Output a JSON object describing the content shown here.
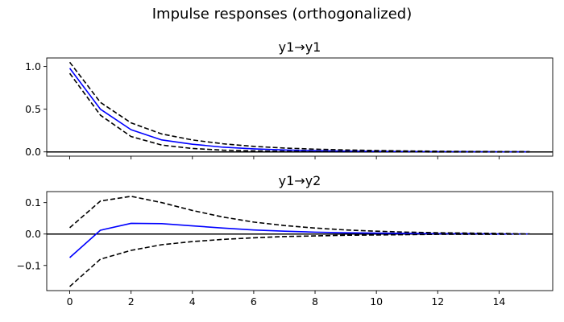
{
  "suptitle": "Impulse responses (orthogonalized)",
  "colors": {
    "response": "#0000ff",
    "bands": "#000000",
    "zero": "#000000",
    "axes": "#000000"
  },
  "chart_data": [
    {
      "type": "line",
      "title": "y1→y1",
      "xlim": [
        -0.75,
        15.75
      ],
      "ylim": [
        -0.05,
        1.1
      ],
      "xticks": [
        0,
        2,
        4,
        6,
        8,
        10,
        12,
        14
      ],
      "show_xtick_labels": false,
      "yticks": [
        0.0,
        0.5,
        1.0
      ],
      "ytick_labels": [
        "0.0",
        "0.5",
        "1.0"
      ],
      "zero_line": 0,
      "x": [
        0,
        1,
        2,
        3,
        4,
        5,
        6,
        7,
        8,
        9,
        10,
        11,
        12,
        13,
        14,
        15
      ],
      "series": [
        {
          "role": "response",
          "style": "solid",
          "values": [
            0.98,
            0.5,
            0.26,
            0.14,
            0.09,
            0.055,
            0.035,
            0.022,
            0.014,
            0.009,
            0.006,
            0.004,
            0.003,
            0.002,
            0.001,
            0.001
          ]
        },
        {
          "role": "upper",
          "style": "dashed",
          "values": [
            1.05,
            0.58,
            0.34,
            0.21,
            0.14,
            0.095,
            0.065,
            0.045,
            0.032,
            0.023,
            0.016,
            0.011,
            0.008,
            0.005,
            0.004,
            0.003
          ]
        },
        {
          "role": "lower",
          "style": "dashed",
          "values": [
            0.92,
            0.43,
            0.18,
            0.08,
            0.04,
            0.02,
            0.012,
            0.007,
            0.004,
            0.002,
            0.001,
            0.0,
            -0.001,
            -0.001,
            -0.001,
            -0.001
          ]
        }
      ]
    },
    {
      "type": "line",
      "title": "y1→y2",
      "xlim": [
        -0.75,
        15.75
      ],
      "ylim": [
        -0.18,
        0.135
      ],
      "xticks": [
        0,
        2,
        4,
        6,
        8,
        10,
        12,
        14
      ],
      "show_xtick_labels": true,
      "xtick_labels": [
        "0",
        "2",
        "4",
        "6",
        "8",
        "10",
        "12",
        "14"
      ],
      "yticks": [
        -0.1,
        0.0,
        0.1
      ],
      "ytick_labels": [
        "−0.1",
        "0.0",
        "0.1"
      ],
      "zero_line": 0,
      "x": [
        0,
        1,
        2,
        3,
        4,
        5,
        6,
        7,
        8,
        9,
        10,
        11,
        12,
        13,
        14,
        15
      ],
      "series": [
        {
          "role": "response",
          "style": "solid",
          "values": [
            -0.075,
            0.012,
            0.034,
            0.033,
            0.026,
            0.019,
            0.013,
            0.009,
            0.006,
            0.004,
            0.003,
            0.002,
            0.001,
            0.001,
            0.0,
            0.0
          ]
        },
        {
          "role": "upper",
          "style": "dashed",
          "values": [
            0.02,
            0.105,
            0.12,
            0.1,
            0.075,
            0.054,
            0.038,
            0.027,
            0.019,
            0.013,
            0.009,
            0.006,
            0.004,
            0.003,
            0.002,
            0.0
          ]
        },
        {
          "role": "lower",
          "style": "dashed",
          "values": [
            -0.167,
            -0.08,
            -0.052,
            -0.034,
            -0.024,
            -0.017,
            -0.012,
            -0.008,
            -0.006,
            -0.004,
            -0.003,
            -0.002,
            -0.001,
            -0.001,
            -0.001,
            0.0
          ]
        }
      ]
    }
  ]
}
